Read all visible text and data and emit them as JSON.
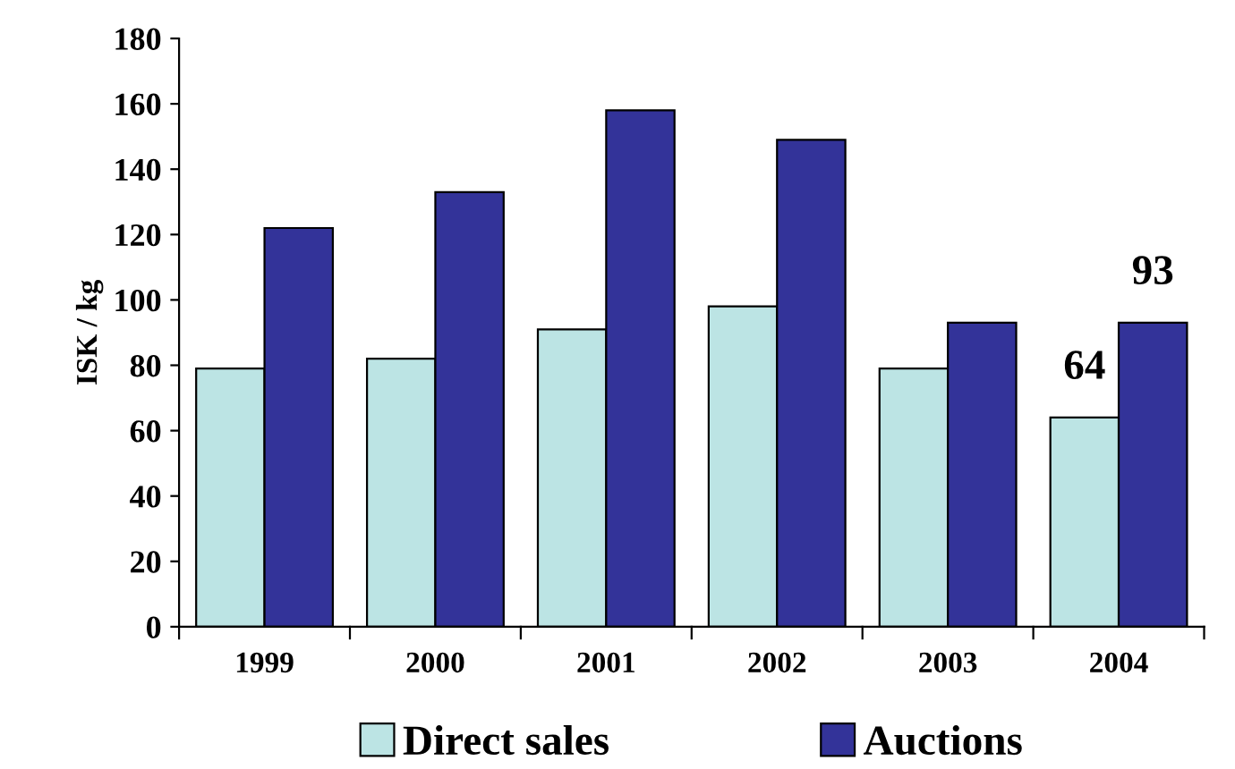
{
  "chart_data": {
    "type": "bar",
    "ylabel": "ISK / kg",
    "categories": [
      "1999",
      "2000",
      "2001",
      "2002",
      "2003",
      "2004"
    ],
    "series": [
      {
        "name": "Direct sales",
        "color": "#bce4e4",
        "values": [
          79,
          82,
          91,
          98,
          79,
          64
        ],
        "value_labels": [
          null,
          null,
          null,
          null,
          null,
          "64"
        ]
      },
      {
        "name": "Auctions",
        "color": "#333399",
        "values": [
          122,
          133,
          158,
          149,
          93,
          93
        ],
        "value_labels": [
          null,
          null,
          null,
          null,
          null,
          "93"
        ]
      }
    ],
    "ylim": [
      0,
      180
    ],
    "yticks": [
      0,
      20,
      40,
      60,
      80,
      100,
      120,
      140,
      160,
      180
    ],
    "grid": false,
    "legend": "bottom"
  }
}
